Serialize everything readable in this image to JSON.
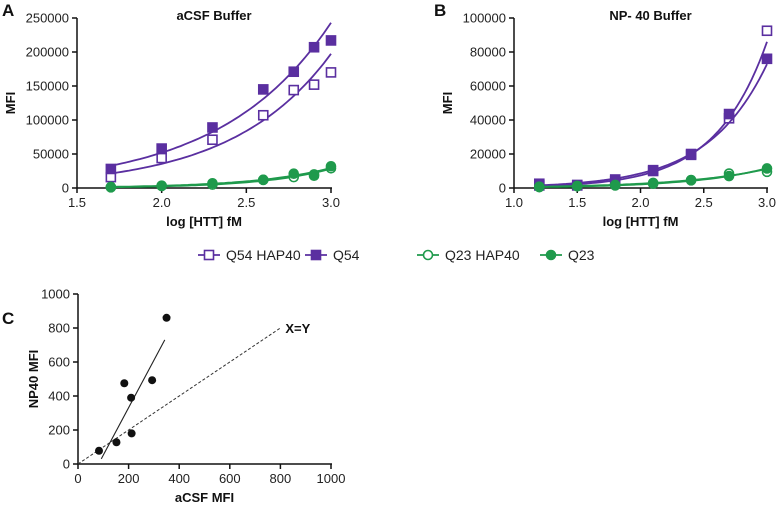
{
  "colors": {
    "purple": "#5a2fa0",
    "green": "#1f9a4c"
  },
  "legend": [
    {
      "label": "Q54 HAP40",
      "color": "purple",
      "marker": "square-open"
    },
    {
      "label": "Q54",
      "color": "purple",
      "marker": "square-filled"
    },
    {
      "label": "Q23 HAP40",
      "color": "green",
      "marker": "circle-open"
    },
    {
      "label": "Q23",
      "color": "green",
      "marker": "circle-filled"
    }
  ],
  "chart_data": [
    {
      "panel": "A",
      "type": "scatter",
      "title": "aCSF Buffer",
      "xlabel": "log [HTT] fM",
      "ylabel": "MFI",
      "xlim": [
        1.5,
        3.0
      ],
      "ylim": [
        0,
        250000
      ],
      "xticks": [
        "1.5",
        "2.0",
        "2.5",
        "3.0"
      ],
      "yticks": [
        "0",
        "50000",
        "100000",
        "150000",
        "200000",
        "250000"
      ],
      "fit": "exponential",
      "x": [
        1.7,
        2.0,
        2.3,
        2.6,
        2.78,
        2.9,
        3.0
      ],
      "series": [
        {
          "name": "Q54 HAP40",
          "values": [
            16000,
            44000,
            71000,
            107000,
            144000,
            152000,
            170000
          ]
        },
        {
          "name": "Q54",
          "values": [
            28000,
            58000,
            89000,
            145000,
            171000,
            207000,
            217000
          ]
        },
        {
          "name": "Q23 HAP40",
          "values": [
            1000,
            3000,
            5000,
            12000,
            16000,
            20000,
            29000
          ]
        },
        {
          "name": "Q23",
          "values": [
            1500,
            3500,
            7000,
            12000,
            21000,
            18000,
            32000
          ]
        }
      ]
    },
    {
      "panel": "B",
      "type": "scatter",
      "title": "NP- 40 Buffer",
      "xlabel": "log [HTT] fM",
      "ylabel": "MFI",
      "xlim": [
        1.0,
        3.0
      ],
      "ylim": [
        0,
        100000
      ],
      "xticks": [
        "1.0",
        "1.5",
        "2.0",
        "2.5",
        "3.0"
      ],
      "yticks": [
        "0",
        "20000",
        "40000",
        "60000",
        "80000",
        "100000"
      ],
      "fit": "exponential",
      "x": [
        1.2,
        1.5,
        1.8,
        2.1,
        2.4,
        2.7,
        3.0
      ],
      "series": [
        {
          "name": "Q54 HAP40",
          "values": [
            1500,
            1500,
            4000,
            10000,
            20000,
            41000,
            92500
          ]
        },
        {
          "name": "Q54",
          "values": [
            2500,
            1800,
            5000,
            10500,
            19500,
            43500,
            76000
          ]
        },
        {
          "name": "Q23 HAP40",
          "values": [
            500,
            1000,
            1500,
            2500,
            4500,
            8500,
            9500
          ]
        },
        {
          "name": "Q23",
          "values": [
            800,
            1200,
            1800,
            3000,
            4700,
            7000,
            11500
          ]
        }
      ]
    },
    {
      "panel": "C",
      "type": "scatter",
      "title": "",
      "xlabel": "aCSF MFI",
      "ylabel": "NP40 MFI",
      "xlim": [
        0,
        1000
      ],
      "ylim": [
        0,
        1000
      ],
      "xticks": [
        "0",
        "200",
        "400",
        "600",
        "800",
        "1000"
      ],
      "yticks": [
        "0",
        "200",
        "400",
        "600",
        "800",
        "1000"
      ],
      "points": [
        [
          83,
          78
        ],
        [
          152,
          128
        ],
        [
          183,
          475
        ],
        [
          210,
          390
        ],
        [
          212,
          180
        ],
        [
          293,
          493
        ],
        [
          350,
          860
        ]
      ],
      "regression_line": [
        [
          92,
          30
        ],
        [
          343,
          730
        ]
      ],
      "identity_line": [
        [
          0,
          0
        ],
        [
          800,
          800
        ]
      ],
      "annotation": "X=Y"
    }
  ]
}
